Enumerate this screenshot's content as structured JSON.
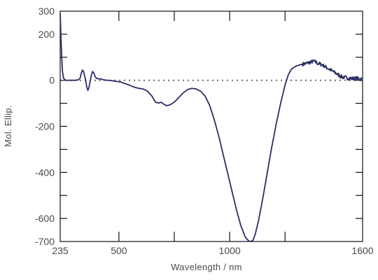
{
  "chart_data": {
    "type": "line",
    "title": "",
    "xlabel": "Wavelength / nm",
    "ylabel": "Mol. Ellip.",
    "xlim": [
      235,
      1600
    ],
    "ylim": [
      -700,
      300
    ],
    "x_ticks": [
      {
        "value": 235,
        "label": "235"
      },
      {
        "value": 500,
        "label": "500"
      },
      {
        "value": 1000,
        "label": "1000"
      },
      {
        "value": 1600,
        "label": "1600"
      }
    ],
    "y_ticks": [
      {
        "value": 300,
        "label": "300"
      },
      {
        "value": 200,
        "label": "200"
      },
      {
        "value": 0,
        "label": "0"
      },
      {
        "value": -200,
        "label": "-200"
      },
      {
        "value": -400,
        "label": "-400"
      },
      {
        "value": -600,
        "label": "-600"
      },
      {
        "value": -700,
        "label": "-700"
      }
    ],
    "x_minor_ticks": [
      750,
      1250
    ],
    "y_minor_ticks": [
      100,
      -100,
      -300,
      -500
    ],
    "baseline": 0,
    "grid": false,
    "series": [
      {
        "color": "#2b2e63",
        "points": [
          [
            235,
            290
          ],
          [
            238,
            200
          ],
          [
            241,
            120
          ],
          [
            245,
            40
          ],
          [
            250,
            10
          ],
          [
            256,
            2
          ],
          [
            262,
            0
          ],
          [
            280,
            0
          ],
          [
            300,
            0
          ],
          [
            318,
            2
          ],
          [
            325,
            10
          ],
          [
            330,
            30
          ],
          [
            335,
            44
          ],
          [
            340,
            40
          ],
          [
            345,
            20
          ],
          [
            350,
            0
          ],
          [
            355,
            -30
          ],
          [
            360,
            -44
          ],
          [
            365,
            -30
          ],
          [
            370,
            -5
          ],
          [
            375,
            20
          ],
          [
            381,
            38
          ],
          [
            387,
            32
          ],
          [
            393,
            15
          ],
          [
            400,
            8
          ],
          [
            410,
            6
          ],
          [
            420,
            6
          ],
          [
            430,
            2
          ],
          [
            450,
            0
          ],
          [
            470,
            -2
          ],
          [
            490,
            -5
          ],
          [
            510,
            -8
          ],
          [
            530,
            -15
          ],
          [
            550,
            -22
          ],
          [
            570,
            -30
          ],
          [
            590,
            -35
          ],
          [
            610,
            -38
          ],
          [
            630,
            -48
          ],
          [
            650,
            -70
          ],
          [
            665,
            -95
          ],
          [
            680,
            -99
          ],
          [
            690,
            -95
          ],
          [
            700,
            -102
          ],
          [
            715,
            -110
          ],
          [
            730,
            -107
          ],
          [
            750,
            -95
          ],
          [
            770,
            -75
          ],
          [
            790,
            -55
          ],
          [
            810,
            -40
          ],
          [
            830,
            -35
          ],
          [
            850,
            -38
          ],
          [
            870,
            -48
          ],
          [
            890,
            -70
          ],
          [
            910,
            -110
          ],
          [
            930,
            -170
          ],
          [
            950,
            -240
          ],
          [
            970,
            -320
          ],
          [
            990,
            -400
          ],
          [
            1010,
            -480
          ],
          [
            1030,
            -560
          ],
          [
            1050,
            -630
          ],
          [
            1070,
            -680
          ],
          [
            1085,
            -697
          ],
          [
            1095,
            -700
          ],
          [
            1105,
            -695
          ],
          [
            1115,
            -670
          ],
          [
            1130,
            -610
          ],
          [
            1150,
            -510
          ],
          [
            1170,
            -400
          ],
          [
            1190,
            -290
          ],
          [
            1210,
            -190
          ],
          [
            1230,
            -100
          ],
          [
            1250,
            -20
          ],
          [
            1265,
            25
          ],
          [
            1280,
            50
          ],
          [
            1300,
            62
          ],
          [
            1320,
            68
          ],
          [
            1340,
            72
          ],
          [
            1355,
            76
          ],
          [
            1370,
            80
          ],
          [
            1380,
            83
          ],
          [
            1390,
            78
          ],
          [
            1400,
            72
          ],
          [
            1410,
            70
          ],
          [
            1420,
            66
          ],
          [
            1430,
            60
          ],
          [
            1440,
            54
          ],
          [
            1450,
            48
          ],
          [
            1460,
            42
          ],
          [
            1470,
            36
          ],
          [
            1480,
            30
          ],
          [
            1490,
            24
          ],
          [
            1500,
            18
          ],
          [
            1510,
            14
          ],
          [
            1520,
            12
          ],
          [
            1530,
            10
          ],
          [
            1540,
            9
          ],
          [
            1550,
            8
          ],
          [
            1560,
            8
          ],
          [
            1570,
            8
          ],
          [
            1580,
            8
          ],
          [
            1590,
            6
          ],
          [
            1600,
            5
          ]
        ],
        "noise_from_x": 1330,
        "noise_amplitude": 8
      }
    ]
  }
}
